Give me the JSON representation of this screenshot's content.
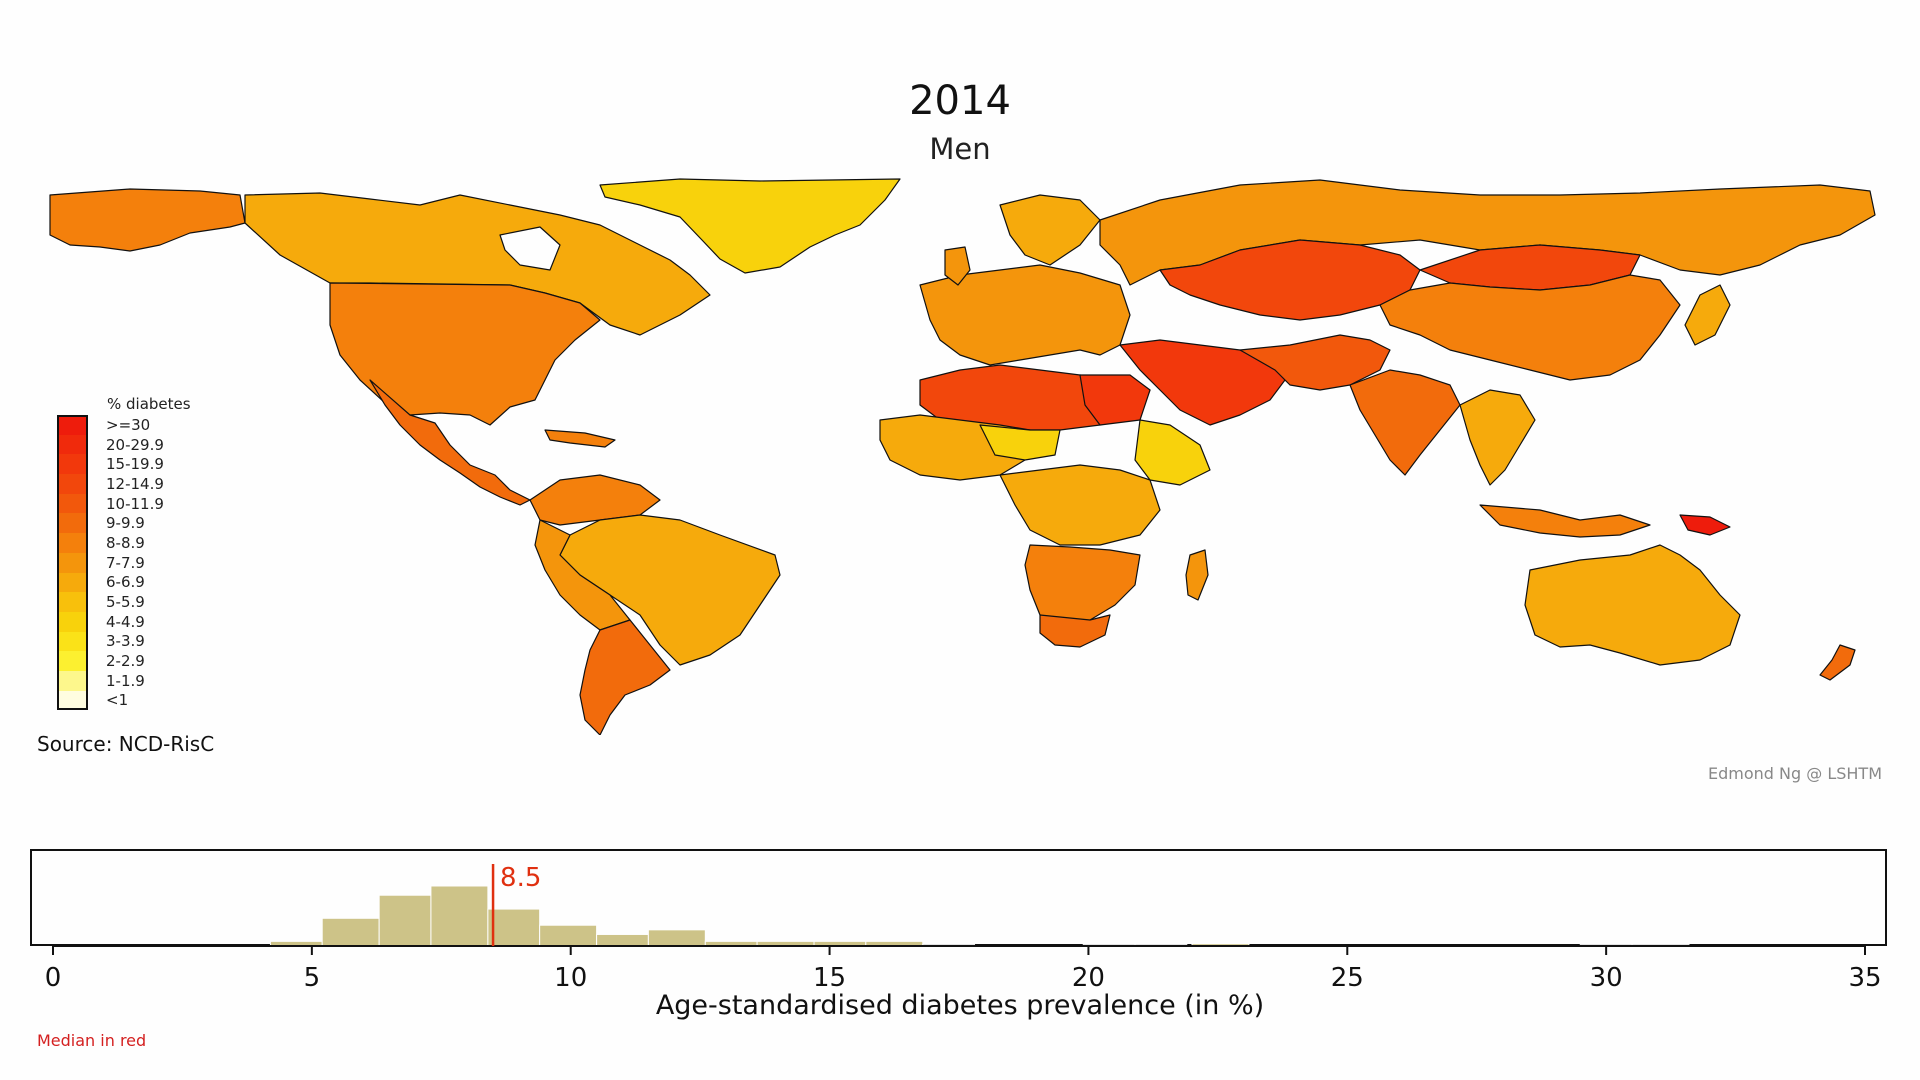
{
  "title": "2014",
  "subtitle": "Men",
  "source": "Source: NCD-RisC",
  "credit": "Edmond Ng @ LSHTM",
  "median_note": "Median in red",
  "legend": {
    "title": "% diabetes",
    "items": [
      {
        "label": ">=30",
        "color": "#ee1c0c"
      },
      {
        "label": "20-29.9",
        "color": "#f02a0c"
      },
      {
        "label": "15-19.9",
        "color": "#f2380c"
      },
      {
        "label": "12-14.9",
        "color": "#f2470c"
      },
      {
        "label": "10-11.9",
        "color": "#f2580c"
      },
      {
        "label": "9-9.9",
        "color": "#f26b0c"
      },
      {
        "label": "8-8.9",
        "color": "#f4800c"
      },
      {
        "label": "7-7.9",
        "color": "#f4950c"
      },
      {
        "label": "6-6.9",
        "color": "#f6aa0c"
      },
      {
        "label": "5-5.9",
        "color": "#f8c00c"
      },
      {
        "label": "4-4.9",
        "color": "#f8d20c"
      },
      {
        "label": "3-3.9",
        "color": "#fae218"
      },
      {
        "label": "2-2.9",
        "color": "#fcf030"
      },
      {
        "label": "1-1.9",
        "color": "#fdf78c"
      },
      {
        "label": "<1",
        "color": "#fffde0"
      }
    ]
  },
  "chart_data": {
    "type": "bar",
    "xlabel": "Age-standardised diabetes prevalence (in %)",
    "xlim": [
      0,
      35
    ],
    "xticks": [
      "0",
      "5",
      "10",
      "15",
      "20",
      "25",
      "30",
      "35"
    ],
    "bins": [
      {
        "x0": 4.2,
        "x1": 5.2,
        "count": 1
      },
      {
        "x0": 5.2,
        "x1": 6.3,
        "count": 6
      },
      {
        "x0": 6.3,
        "x1": 7.3,
        "count": 11
      },
      {
        "x0": 7.3,
        "x1": 8.4,
        "count": 13
      },
      {
        "x0": 8.4,
        "x1": 9.4,
        "count": 8
      },
      {
        "x0": 9.4,
        "x1": 10.5,
        "count": 4.5
      },
      {
        "x0": 10.5,
        "x1": 11.5,
        "count": 2.5
      },
      {
        "x0": 11.5,
        "x1": 12.6,
        "count": 3.5
      },
      {
        "x0": 12.6,
        "x1": 13.6,
        "count": 1
      },
      {
        "x0": 13.6,
        "x1": 14.7,
        "count": 1
      },
      {
        "x0": 14.7,
        "x1": 15.7,
        "count": 1
      },
      {
        "x0": 15.7,
        "x1": 16.8,
        "count": 1
      },
      {
        "x0": 16.8,
        "x1": 17.8,
        "count": 0.3
      },
      {
        "x0": 19.9,
        "x1": 20.9,
        "count": 0.3
      },
      {
        "x0": 20.9,
        "x1": 21.9,
        "count": 0.3
      },
      {
        "x0": 22.0,
        "x1": 23.1,
        "count": 0.5
      },
      {
        "x0": 29.5,
        "x1": 30.5,
        "count": 0.3
      },
      {
        "x0": 30.5,
        "x1": 31.6,
        "count": 0.3
      }
    ],
    "median": 8.5,
    "median_label": "8.5",
    "median_color": "#e03010",
    "bar_color": "#cdc388"
  }
}
